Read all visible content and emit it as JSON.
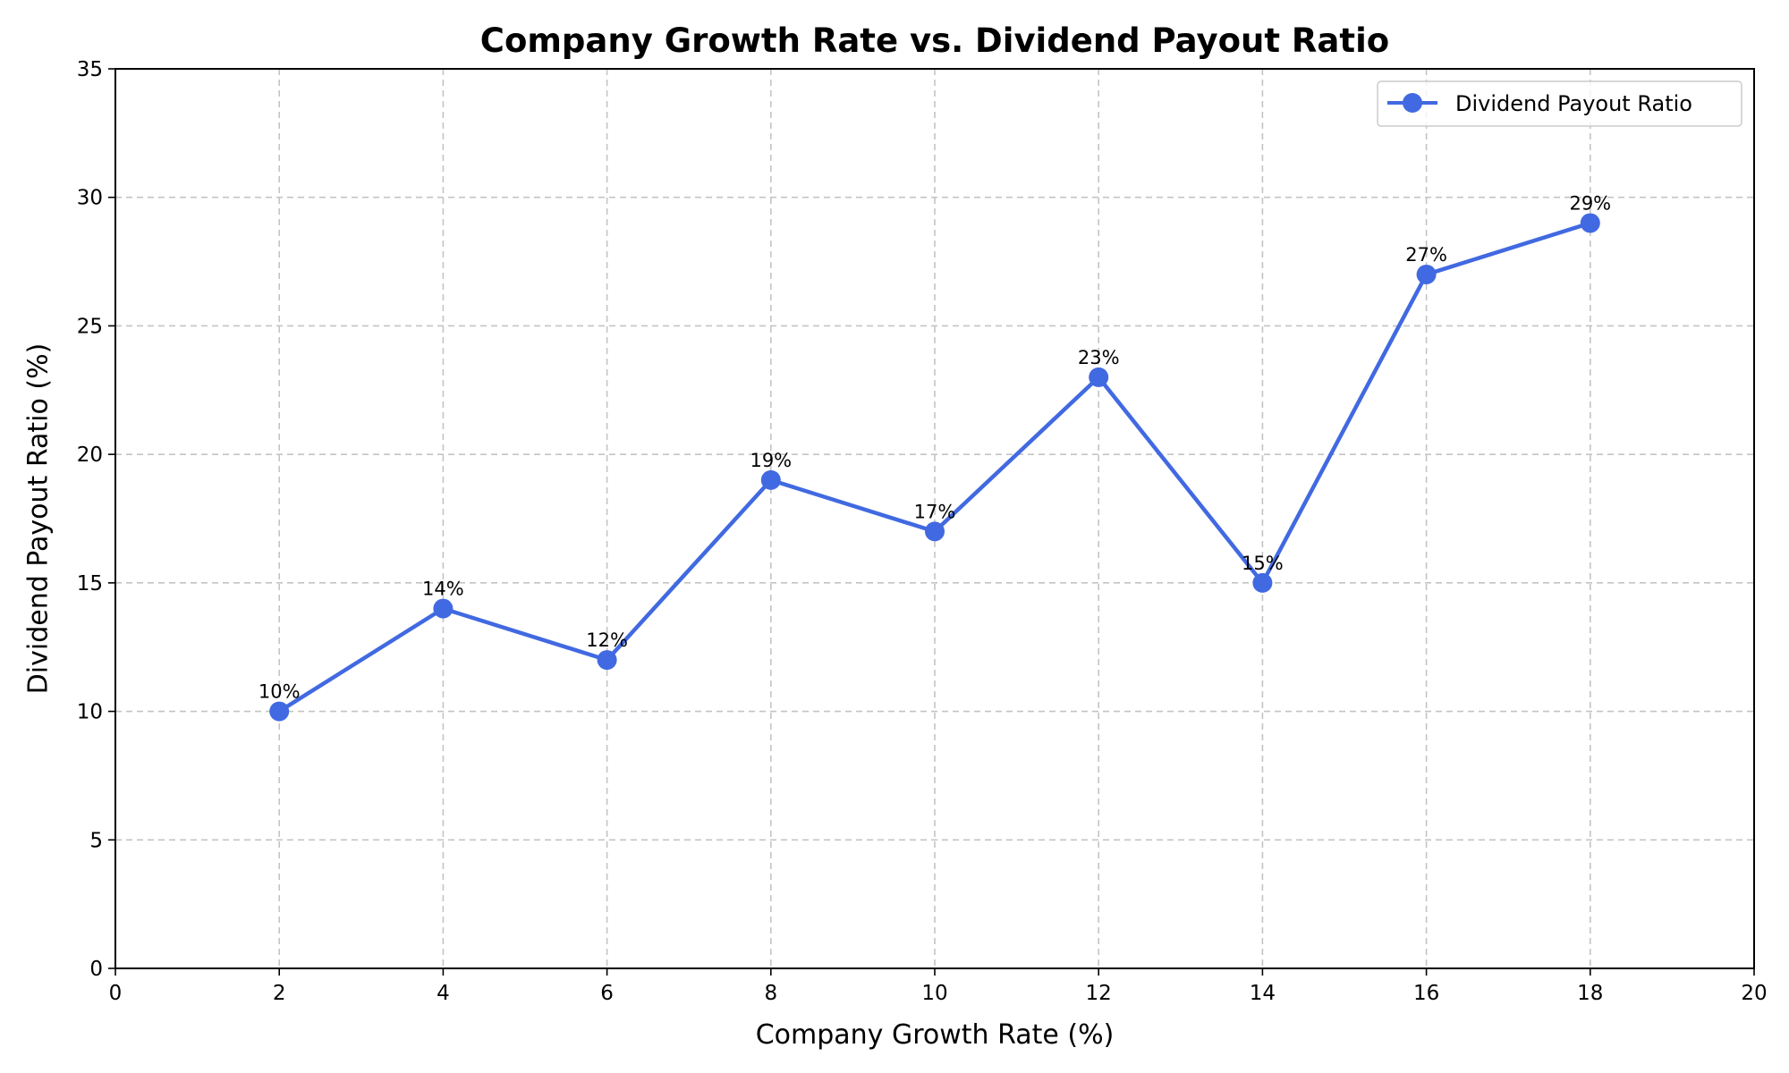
{
  "chart_data": {
    "type": "line",
    "title": "Company Growth Rate vs. Dividend Payout Ratio",
    "xlabel": "Company Growth Rate (%)",
    "ylabel": "Dividend Payout Ratio (%)",
    "xlim": [
      0,
      20
    ],
    "ylim": [
      0,
      35
    ],
    "xticks": [
      0,
      2,
      4,
      6,
      8,
      10,
      12,
      14,
      16,
      18,
      20
    ],
    "yticks": [
      0,
      5,
      10,
      15,
      20,
      25,
      30,
      35
    ],
    "grid": true,
    "grid_style": "dashed",
    "legend_position": "top-right",
    "series": [
      {
        "name": "Dividend Payout Ratio",
        "color": "#4169E1",
        "marker": "circle",
        "x": [
          2,
          4,
          6,
          8,
          10,
          12,
          14,
          16,
          18
        ],
        "y": [
          10,
          14,
          12,
          19,
          17,
          23,
          15,
          27,
          29
        ],
        "data_labels": [
          "10%",
          "14%",
          "12%",
          "19%",
          "17%",
          "23%",
          "15%",
          "27%",
          "29%"
        ]
      }
    ]
  }
}
